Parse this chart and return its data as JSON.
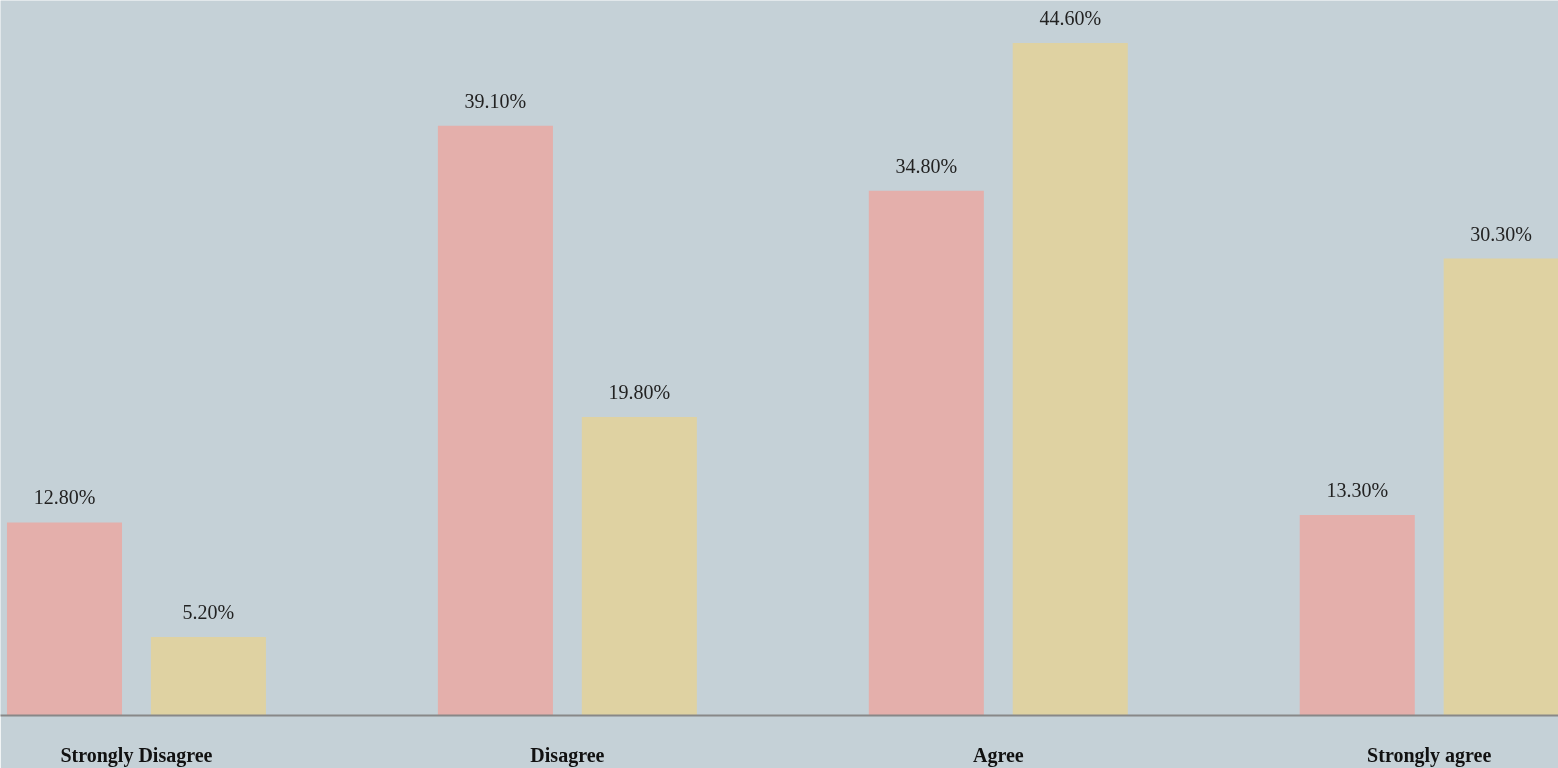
{
  "chart_data": {
    "type": "bar",
    "categories": [
      "Strongly Disagree",
      "Disagree",
      "Agree",
      "Strongly agree"
    ],
    "series": [
      {
        "color": "#e4afab",
        "values": [
          12.8,
          39.1,
          34.8,
          13.3
        ],
        "value_labels": [
          "12.80%",
          "39.10%",
          "34.80%",
          "13.30%"
        ]
      },
      {
        "color": "#dfd2a2",
        "values": [
          5.2,
          19.8,
          44.6,
          30.3
        ],
        "value_labels": [
          "5.20%",
          "19.80%",
          "44.60%",
          "30.30%"
        ]
      }
    ],
    "grid": false
  }
}
